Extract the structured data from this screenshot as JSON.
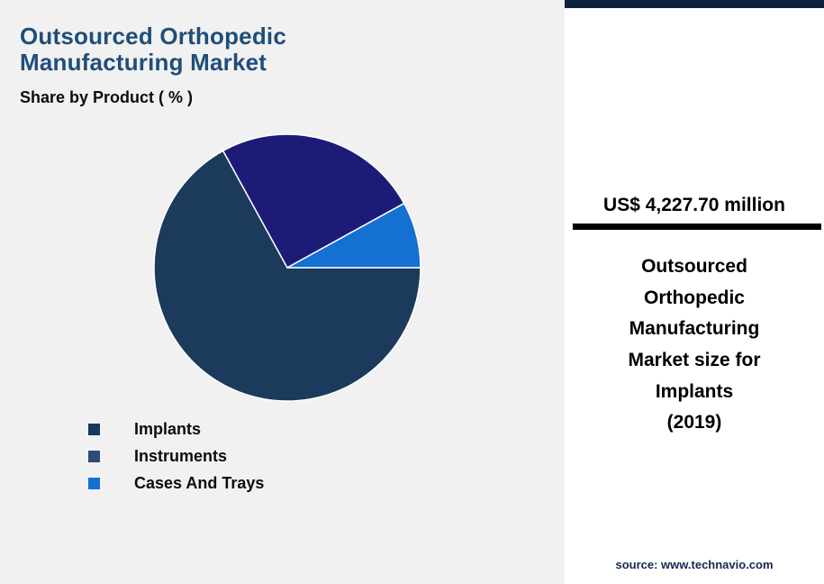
{
  "header": {
    "title_line1": "Outsourced Orthopedic",
    "title_line2": "Manufacturing Market",
    "subtitle": "Share by Product ( % )"
  },
  "chart_data": {
    "type": "pie",
    "title": "Outsourced Orthopedic Manufacturing Market - Share by Product (%)",
    "categories": [
      "Implants",
      "Instruments",
      "Cases And Trays"
    ],
    "values": [
      67,
      25,
      8
    ],
    "unit": "%",
    "colors": [
      "#1b3a5c",
      "#1c1c78",
      "#1470d2"
    ],
    "start_angle_deg": 0,
    "direction": "clockwise",
    "legend_position": "bottom-left",
    "labels_shown": false
  },
  "legend": {
    "items": [
      {
        "label": "Implants",
        "color": "#17375e"
      },
      {
        "label": "Instruments",
        "color": "#2e4a7b"
      },
      {
        "label": "Cases And Trays",
        "color": "#1470d2"
      }
    ]
  },
  "panel": {
    "value": "US$ 4,227.70 million",
    "description": "Outsourced\nOrthopedic\nManufacturing\nMarket size for\nImplants\n(2019)",
    "source": "source: www.technavio.com",
    "accent_color": "#0d2240"
  }
}
